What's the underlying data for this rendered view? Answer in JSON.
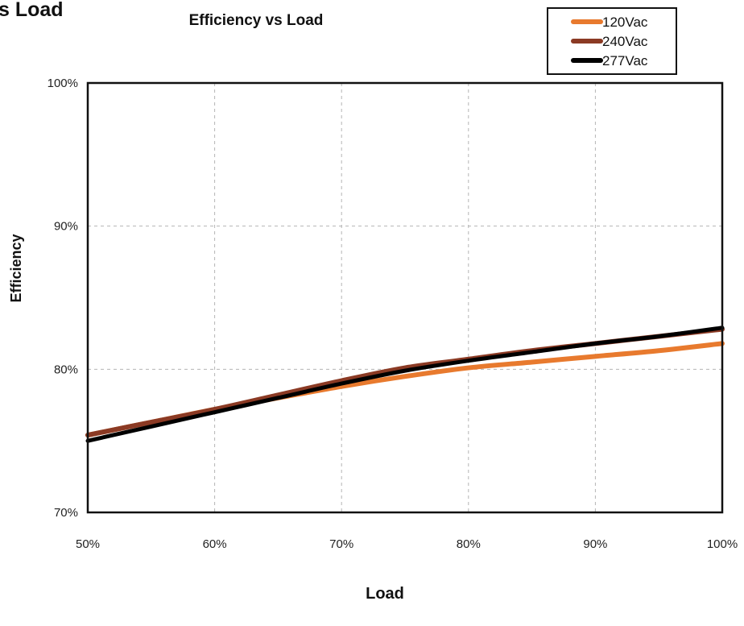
{
  "page": {
    "cropped_title": "s Load"
  },
  "chart_data": {
    "type": "line",
    "title": "Efficiency vs Load",
    "xlabel": "Load",
    "ylabel": "Efficiency",
    "x_ticks": [
      "50%",
      "60%",
      "70%",
      "80%",
      "90%",
      "100%"
    ],
    "y_ticks": [
      "100%",
      "90%",
      "80%",
      "70%"
    ],
    "xlim": [
      50,
      100
    ],
    "ylim": [
      70,
      100
    ],
    "grid": true,
    "legend_position": "top-right",
    "x": [
      50,
      55,
      60,
      65,
      70,
      75,
      80,
      85,
      90,
      95,
      100
    ],
    "series": [
      {
        "name": "120Vac",
        "color": "#e87a2e",
        "values": [
          75.4,
          76.3,
          77.2,
          78.0,
          78.8,
          79.5,
          80.1,
          80.5,
          80.9,
          81.3,
          81.8
        ]
      },
      {
        "name": "240Vac",
        "color": "#8b3a24",
        "values": [
          75.4,
          76.3,
          77.2,
          78.2,
          79.2,
          80.1,
          80.7,
          81.3,
          81.8,
          82.3,
          82.8
        ]
      },
      {
        "name": "277Vac",
        "color": "#000000",
        "values": [
          75.0,
          76.0,
          77.0,
          78.0,
          79.0,
          79.9,
          80.6,
          81.2,
          81.8,
          82.3,
          82.9
        ]
      }
    ]
  }
}
